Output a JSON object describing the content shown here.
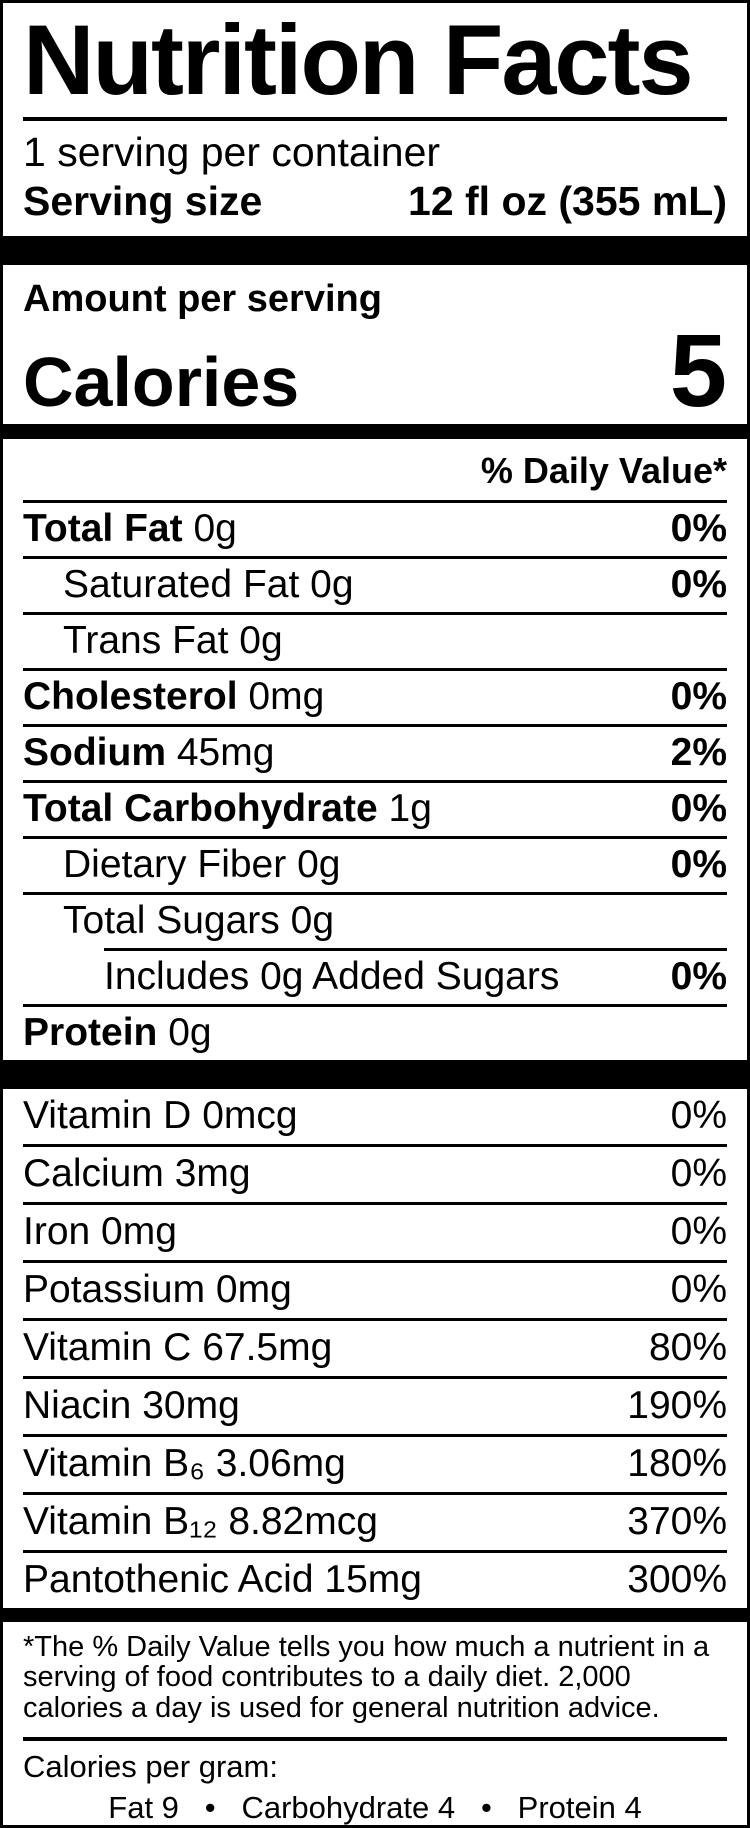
{
  "colors": {
    "ink": "#000000",
    "background": "#ffffff"
  },
  "label": {
    "title": "Nutrition Facts",
    "servings_per_container": "1 serving per container",
    "serving_size_label": "Serving size",
    "serving_size_value": "12 fl oz (355 mL)",
    "amount_per_serving": "Amount per serving",
    "calories_label": "Calories",
    "calories_value": "5",
    "daily_value_header": "% Daily Value*",
    "nutrient_rows": [
      {
        "name": "Total Fat",
        "amount": "0g",
        "dv": "0%",
        "bold": true,
        "indent": 0,
        "rule": "none"
      },
      {
        "name": "Saturated Fat",
        "amount": "0g",
        "dv": "0%",
        "bold": false,
        "indent": 1,
        "rule": "full"
      },
      {
        "name": "Trans Fat",
        "amount": "0g",
        "dv": "",
        "bold": false,
        "indent": 1,
        "rule": "full"
      },
      {
        "name": "Cholesterol",
        "amount": "0mg",
        "dv": "0%",
        "bold": true,
        "indent": 0,
        "rule": "full"
      },
      {
        "name": "Sodium",
        "amount": "45mg",
        "dv": "2%",
        "bold": true,
        "indent": 0,
        "rule": "full"
      },
      {
        "name": "Total Carbohydrate",
        "amount": "1g",
        "dv": "0%",
        "bold": true,
        "indent": 0,
        "rule": "full"
      },
      {
        "name": "Dietary Fiber",
        "amount": "0g",
        "dv": "0%",
        "bold": false,
        "indent": 1,
        "rule": "full"
      },
      {
        "name": "Total Sugars",
        "amount": "0g",
        "dv": "",
        "bold": false,
        "indent": 1,
        "rule": "full"
      },
      {
        "name": "Includes 0g Added Sugars",
        "amount": "",
        "dv": "0%",
        "bold": false,
        "indent": 2,
        "rule": "indent"
      },
      {
        "name": "Protein",
        "amount": "0g",
        "dv": "",
        "bold": true,
        "indent": 0,
        "rule": "full"
      }
    ],
    "micronutrient_rows": [
      {
        "name": "Vitamin D",
        "amount": "0mcg",
        "dv": "0%",
        "rule": "none"
      },
      {
        "name": "Calcium",
        "amount": "3mg",
        "dv": "0%",
        "rule": "full"
      },
      {
        "name": "Iron",
        "amount": "0mg",
        "dv": "0%",
        "rule": "full"
      },
      {
        "name": "Potassium",
        "amount": "0mg",
        "dv": "0%",
        "rule": "full"
      },
      {
        "name": "Vitamin C",
        "amount": "67.5mg",
        "dv": "80%",
        "rule": "full"
      },
      {
        "name": "Niacin",
        "amount": "30mg",
        "dv": "190%",
        "rule": "full"
      },
      {
        "name": "Vitamin B₆",
        "amount": "3.06mg",
        "dv": "180%",
        "rule": "full"
      },
      {
        "name": "Vitamin B₁₂",
        "amount": "8.82mcg",
        "dv": "370%",
        "rule": "full"
      },
      {
        "name": "Pantothenic Acid",
        "amount": "15mg",
        "dv": "300%",
        "rule": "full"
      }
    ],
    "footnote": "*The % Daily Value tells you how much a nutrient in a serving of food contributes to a daily diet. 2,000 calories a day is used for general nutrition advice.",
    "calories_per_gram_label": "Calories per gram:",
    "calories_per_gram_values": "Fat 9   •   Carbohydrate 4   •   Protein 4"
  }
}
